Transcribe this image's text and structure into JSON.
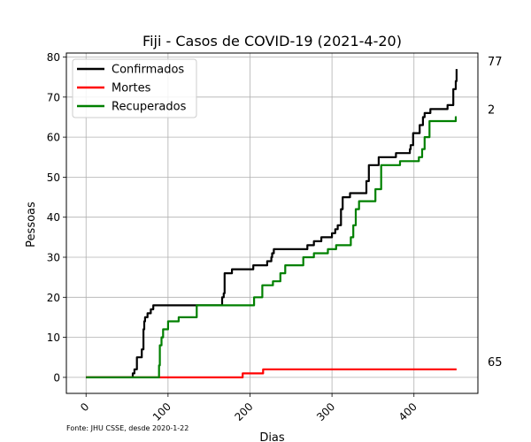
{
  "chart_data": {
    "type": "line",
    "title": "Fiji - Casos de COVID-19 (2021-4-20)",
    "xlabel": "Dias",
    "ylabel": "Pessoas",
    "xlim": [
      -24,
      478
    ],
    "ylim": [
      -4,
      81
    ],
    "xticks": [
      0,
      100,
      200,
      300,
      400
    ],
    "yticks": [
      0,
      10,
      20,
      30,
      40,
      50,
      60,
      70,
      80
    ],
    "grid": true,
    "legend_position": "upper-left",
    "source_note": "Fonte: JHU CSSE, desde 2020-1-22",
    "end_labels": [
      "77",
      "65",
      "2"
    ],
    "series": [
      {
        "name": "Confirmados",
        "color": "#000000",
        "points": [
          [
            0,
            0
          ],
          [
            56,
            0
          ],
          [
            57,
            1
          ],
          [
            59,
            2
          ],
          [
            62,
            5
          ],
          [
            67,
            5
          ],
          [
            68,
            7
          ],
          [
            70,
            12
          ],
          [
            71,
            14
          ],
          [
            72,
            15
          ],
          [
            75,
            16
          ],
          [
            78,
            16
          ],
          [
            79,
            17
          ],
          [
            82,
            18
          ],
          [
            165,
            18
          ],
          [
            166,
            20
          ],
          [
            168,
            21
          ],
          [
            169,
            26
          ],
          [
            178,
            27
          ],
          [
            204,
            28
          ],
          [
            221,
            29
          ],
          [
            226,
            30
          ],
          [
            227,
            31
          ],
          [
            229,
            32
          ],
          [
            270,
            33
          ],
          [
            271,
            33
          ],
          [
            278,
            34
          ],
          [
            287,
            35
          ],
          [
            300,
            36
          ],
          [
            304,
            37
          ],
          [
            307,
            38
          ],
          [
            311,
            42
          ],
          [
            313,
            45
          ],
          [
            322,
            46
          ],
          [
            342,
            49
          ],
          [
            345,
            53
          ],
          [
            357,
            55
          ],
          [
            378,
            56
          ],
          [
            395,
            57
          ],
          [
            396,
            58
          ],
          [
            399,
            61
          ],
          [
            407,
            63
          ],
          [
            411,
            65
          ],
          [
            413,
            66
          ],
          [
            420,
            67
          ],
          [
            441,
            68
          ],
          [
            448,
            72
          ],
          [
            451,
            74
          ],
          [
            452,
            77
          ]
        ]
      },
      {
        "name": "Mortes",
        "color": "#ff0000",
        "points": [
          [
            0,
            0
          ],
          [
            190,
            0
          ],
          [
            191,
            1
          ],
          [
            216,
            2
          ],
          [
            452,
            2
          ]
        ]
      },
      {
        "name": "Recuperados",
        "color": "#008000",
        "points": [
          [
            0,
            0
          ],
          [
            88,
            0
          ],
          [
            89,
            3
          ],
          [
            90,
            8
          ],
          [
            92,
            10
          ],
          [
            94,
            12
          ],
          [
            100,
            14
          ],
          [
            113,
            15
          ],
          [
            135,
            18
          ],
          [
            204,
            18
          ],
          [
            205,
            20
          ],
          [
            215,
            23
          ],
          [
            228,
            24
          ],
          [
            237,
            26
          ],
          [
            243,
            28
          ],
          [
            265,
            30
          ],
          [
            278,
            31
          ],
          [
            295,
            32
          ],
          [
            305,
            33
          ],
          [
            323,
            35
          ],
          [
            326,
            38
          ],
          [
            329,
            42
          ],
          [
            333,
            44
          ],
          [
            353,
            47
          ],
          [
            360,
            53
          ],
          [
            383,
            54
          ],
          [
            406,
            55
          ],
          [
            410,
            57
          ],
          [
            413,
            60
          ],
          [
            419,
            64
          ],
          [
            451,
            65
          ],
          [
            452,
            65
          ]
        ]
      }
    ]
  }
}
